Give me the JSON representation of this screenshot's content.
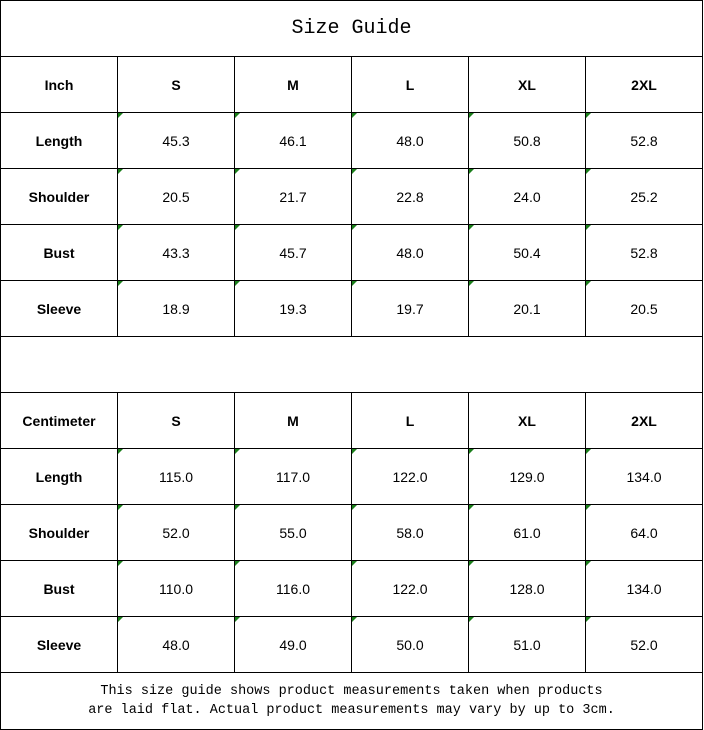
{
  "title": "Size Guide",
  "sizes": [
    "S",
    "M",
    "L",
    "XL",
    "2XL"
  ],
  "inch": {
    "unit_label": "Inch",
    "rows": [
      {
        "label": "Length",
        "values": [
          "45.3",
          "46.1",
          "48.0",
          "50.8",
          "52.8"
        ]
      },
      {
        "label": "Shoulder",
        "values": [
          "20.5",
          "21.7",
          "22.8",
          "24.0",
          "25.2"
        ]
      },
      {
        "label": "Bust",
        "values": [
          "43.3",
          "45.7",
          "48.0",
          "50.4",
          "52.8"
        ]
      },
      {
        "label": "Sleeve",
        "values": [
          "18.9",
          "19.3",
          "19.7",
          "20.1",
          "20.5"
        ]
      }
    ]
  },
  "cm": {
    "unit_label": "Centimeter",
    "rows": [
      {
        "label": "Length",
        "values": [
          "115.0",
          "117.0",
          "122.0",
          "129.0",
          "134.0"
        ]
      },
      {
        "label": "Shoulder",
        "values": [
          "52.0",
          "55.0",
          "58.0",
          "61.0",
          "64.0"
        ]
      },
      {
        "label": "Bust",
        "values": [
          "110.0",
          "116.0",
          "122.0",
          "128.0",
          "134.0"
        ]
      },
      {
        "label": "Sleeve",
        "values": [
          "48.0",
          "49.0",
          "50.0",
          "51.0",
          "52.0"
        ]
      }
    ]
  },
  "note": {
    "line1": "This size guide shows product measurements taken when products",
    "line2": "are laid flat. Actual product measurements may vary by up to 3cm."
  },
  "colors": {
    "text_marker": "#1a7f1a",
    "border": "#000000"
  }
}
